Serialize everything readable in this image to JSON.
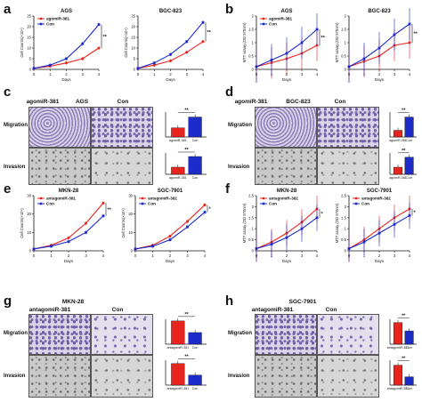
{
  "panels": {
    "a": {
      "letter": "a",
      "left_title": "AGS",
      "right_title": "BGC-823",
      "legend": [
        "agomiR-381",
        "Con"
      ],
      "ylabel": "Cell Counts(×10⁴)",
      "xlabel": "Days",
      "sig": "**"
    },
    "b": {
      "letter": "b",
      "left_title": "AGS",
      "right_title": "BGC-823",
      "legend": [
        "agomiR-381",
        "Con"
      ],
      "ylabel": "MTT assay (OD 570nm)",
      "xlabel": "Days",
      "sig": "**"
    },
    "c": {
      "letter": "c",
      "title": "AGS",
      "cols": [
        "agomiR-381",
        "Con"
      ],
      "rows": [
        "Migration",
        "Invasion"
      ],
      "bar_labels": [
        "agomiR-381",
        "Con"
      ],
      "sig": "**"
    },
    "d": {
      "letter": "d",
      "title": "BGC-823",
      "cols": [
        "agomiR-381",
        "Con"
      ],
      "rows": [
        "Migration",
        "Invasion"
      ],
      "bar_labels": [
        "agomiR-381",
        "Con"
      ],
      "sig": "**"
    },
    "e": {
      "letter": "e",
      "left_title": "MKN-28",
      "right_title": "SGC-7901",
      "legend": [
        "antagomiR-381",
        "Con"
      ],
      "ylabel": "Cell Counts(×10⁴)",
      "xlabel": "Days",
      "sig_left": "**",
      "sig_right": "*"
    },
    "f": {
      "letter": "f",
      "left_title": "MKN-28",
      "right_title": "SGC-7901",
      "legend": [
        "antagomiR-381",
        "Con"
      ],
      "ylabel": "MTT assay (OD 570nm)",
      "xlabel": "Days",
      "sig": "*"
    },
    "g": {
      "letter": "g",
      "title": "MKN-28",
      "cols": [
        "antagomiR-381",
        "Con"
      ],
      "rows": [
        "Migration",
        "Invasion"
      ],
      "bar_labels": [
        "antagomiR-381",
        "Con"
      ],
      "sig": "**"
    },
    "h": {
      "letter": "h",
      "title": "SGC-7901",
      "cols": [
        "antagomiR-381",
        "Con"
      ],
      "rows": [
        "Migration",
        "Invasion"
      ],
      "bar_labels": [
        "antagomiR-381",
        "Con"
      ],
      "sig": "**"
    }
  },
  "colors": {
    "treat": "#e8241f",
    "con": "#1c2bc9"
  },
  "chart_data": [
    {
      "id": "a-left",
      "type": "line",
      "x": [
        0,
        1,
        2,
        3,
        4
      ],
      "series": [
        {
          "name": "agomiR-381",
          "values": [
            0.5,
            1.5,
            3,
            5,
            10
          ]
        },
        {
          "name": "Con",
          "values": [
            0.5,
            2,
            5,
            12,
            21
          ]
        }
      ],
      "ylim": [
        0,
        25
      ],
      "yticks": [
        0,
        5,
        10,
        15,
        20,
        25
      ],
      "xticks": [
        0,
        1,
        2,
        3,
        4
      ]
    },
    {
      "id": "a-right",
      "type": "line",
      "x": [
        0,
        1,
        2,
        3,
        4
      ],
      "series": [
        {
          "name": "agomiR-381",
          "values": [
            0.5,
            2,
            4,
            8,
            13
          ]
        },
        {
          "name": "Con",
          "values": [
            0.5,
            3,
            7,
            13,
            22
          ]
        }
      ],
      "ylim": [
        0,
        25
      ],
      "yticks": [
        0,
        5,
        10,
        15,
        20,
        25
      ],
      "xticks": [
        0,
        1,
        2,
        3,
        4
      ]
    },
    {
      "id": "b-left",
      "type": "line",
      "x": [
        0,
        1,
        2,
        3,
        4
      ],
      "series": [
        {
          "name": "agomiR-381",
          "values": [
            0.1,
            0.25,
            0.4,
            0.6,
            0.9
          ]
        },
        {
          "name": "Con",
          "values": [
            0.1,
            0.35,
            0.6,
            1.0,
            1.5
          ]
        }
      ],
      "ylim": [
        0,
        2.0
      ],
      "yticks": [
        0,
        0.5,
        1.0,
        1.5,
        2.0
      ],
      "xticks": [
        0,
        1,
        2,
        3,
        4
      ]
    },
    {
      "id": "b-right",
      "type": "line",
      "x": [
        0,
        1,
        2,
        3,
        4
      ],
      "series": [
        {
          "name": "agomiR-381",
          "values": [
            0.1,
            0.3,
            0.5,
            0.9,
            1.0
          ]
        },
        {
          "name": "Con",
          "values": [
            0.1,
            0.4,
            0.8,
            1.3,
            1.7
          ]
        }
      ],
      "ylim": [
        0,
        2.0
      ],
      "yticks": [
        0,
        0.5,
        1.0,
        1.5,
        2.0
      ],
      "xticks": [
        0,
        1,
        2,
        3,
        4
      ]
    },
    {
      "id": "e-left",
      "type": "line",
      "x": [
        0,
        1,
        2,
        3,
        4
      ],
      "series": [
        {
          "name": "antagomiR-381",
          "values": [
            1,
            3,
            7,
            15,
            26
          ]
        },
        {
          "name": "Con",
          "values": [
            1,
            2.5,
            5,
            10,
            19
          ]
        }
      ],
      "ylim": [
        0,
        30
      ],
      "yticks": [
        0,
        10,
        20,
        30
      ],
      "xticks": [
        0,
        1,
        2,
        3,
        4
      ]
    },
    {
      "id": "e-right",
      "type": "line",
      "x": [
        0,
        1,
        2,
        3,
        4
      ],
      "series": [
        {
          "name": "antagomiR-381",
          "values": [
            1,
            3,
            8,
            16,
            25
          ]
        },
        {
          "name": "Con",
          "values": [
            1,
            2.5,
            6,
            13,
            21
          ]
        }
      ],
      "ylim": [
        0,
        30
      ],
      "yticks": [
        0,
        10,
        20,
        30
      ],
      "xticks": [
        0,
        1,
        2,
        3,
        4
      ]
    },
    {
      "id": "f-left",
      "type": "line",
      "x": [
        0,
        1,
        2,
        3,
        4
      ],
      "series": [
        {
          "name": "antagomiR-381",
          "values": [
            0.1,
            0.4,
            0.8,
            1.3,
            1.9
          ]
        },
        {
          "name": "Con",
          "values": [
            0.1,
            0.3,
            0.6,
            1.0,
            1.5
          ]
        }
      ],
      "ylim": [
        0,
        2.5
      ],
      "yticks": [
        0,
        0.5,
        1.0,
        1.5,
        2.0,
        2.5
      ],
      "xticks": [
        0,
        1,
        2,
        3,
        4
      ]
    },
    {
      "id": "f-right",
      "type": "line",
      "x": [
        0,
        1,
        2,
        3,
        4
      ],
      "series": [
        {
          "name": "antagomiR-381",
          "values": [
            0.1,
            0.5,
            1.0,
            1.5,
            1.9
          ]
        },
        {
          "name": "Con",
          "values": [
            0.1,
            0.4,
            0.8,
            1.2,
            1.6
          ]
        }
      ],
      "ylim": [
        0,
        2.5
      ],
      "yticks": [
        0,
        0.5,
        1.0,
        1.5,
        2.0,
        2.5
      ],
      "xticks": [
        0,
        1,
        2,
        3,
        4
      ]
    },
    {
      "id": "c-mig",
      "type": "bar",
      "categories": [
        "agomiR-381",
        "Con"
      ],
      "values": [
        55,
        120
      ],
      "ylim": [
        0,
        150
      ]
    },
    {
      "id": "c-inv",
      "type": "bar",
      "categories": [
        "agomiR-381",
        "Con"
      ],
      "values": [
        50,
        125
      ],
      "ylim": [
        0,
        150
      ]
    },
    {
      "id": "d-mig",
      "type": "bar",
      "categories": [
        "agomiR-381",
        "Con"
      ],
      "values": [
        40,
        120
      ],
      "ylim": [
        0,
        150
      ]
    },
    {
      "id": "d-inv",
      "type": "bar",
      "categories": [
        "agomiR-381",
        "Con"
      ],
      "values": [
        50,
        120
      ],
      "ylim": [
        0,
        150
      ]
    },
    {
      "id": "g-mig",
      "type": "bar",
      "categories": [
        "antagomiR-381",
        "Con"
      ],
      "values": [
        140,
        70
      ],
      "ylim": [
        0,
        150
      ]
    },
    {
      "id": "g-inv",
      "type": "bar",
      "categories": [
        "antagomiR-381",
        "Con"
      ],
      "values": [
        130,
        60
      ],
      "ylim": [
        0,
        150
      ]
    },
    {
      "id": "h-mig",
      "type": "bar",
      "categories": [
        "antagomiR-381",
        "Con"
      ],
      "values": [
        130,
        80
      ],
      "ylim": [
        0,
        150
      ]
    },
    {
      "id": "h-inv",
      "type": "bar",
      "categories": [
        "antagomiR-381",
        "Con"
      ],
      "values": [
        120,
        50
      ],
      "ylim": [
        0,
        150
      ]
    }
  ]
}
